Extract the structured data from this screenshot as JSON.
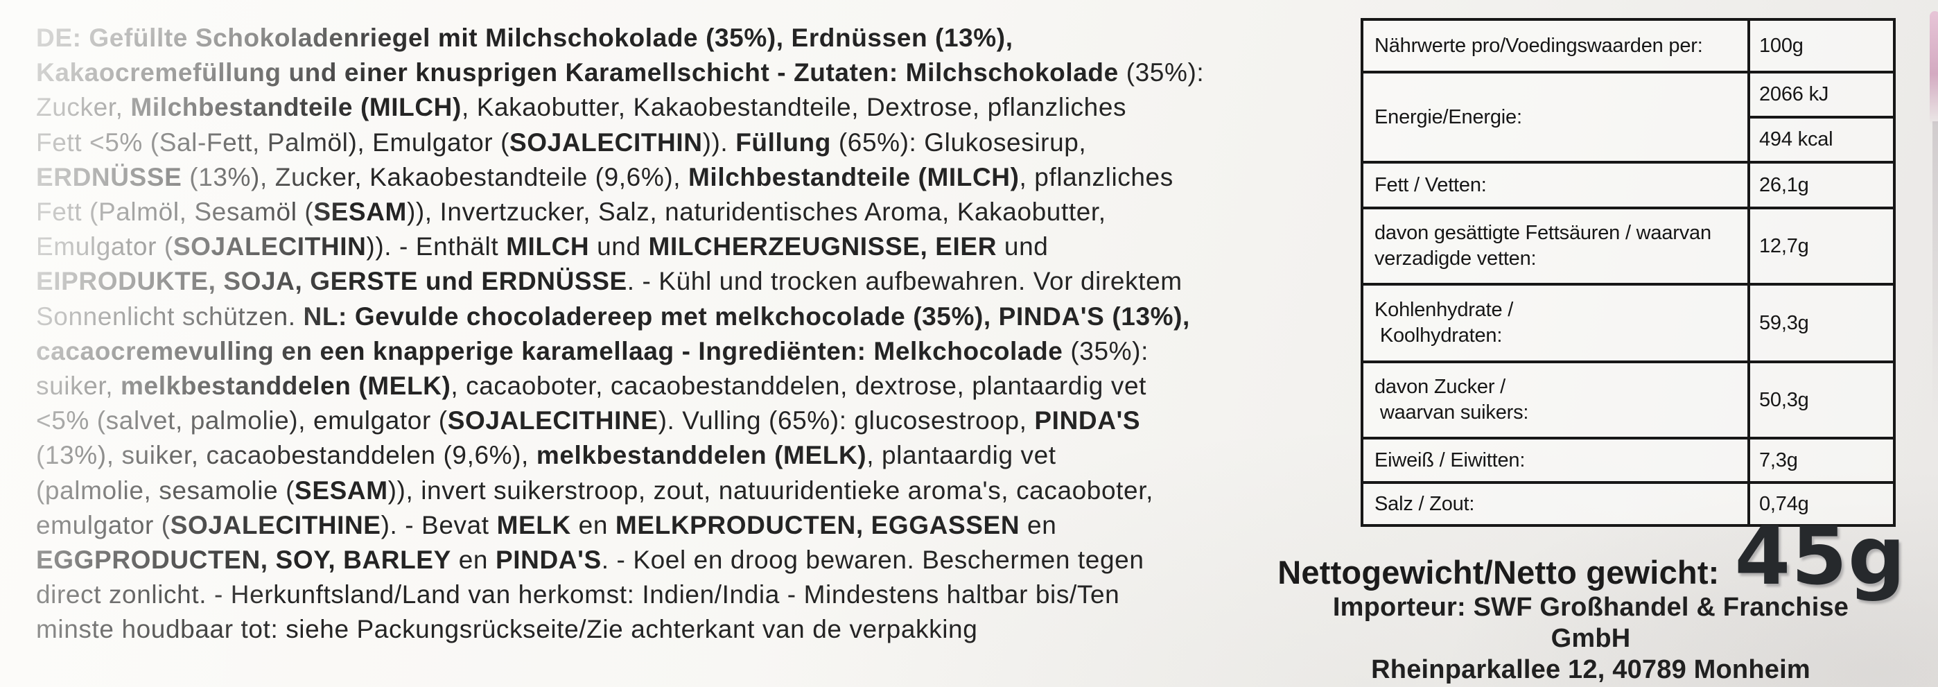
{
  "colors": {
    "text": "#1e1e1e",
    "table_border": "#171717",
    "background": "#f5f4f1",
    "edge_artifact_pink": "#d9aec6"
  },
  "ingredients": {
    "lines": [
      [
        [
          "b",
          "DE: Gefüllte Schokoladenriegel mit Milchschokolade (35%), Erdnüssen (13%),"
        ]
      ],
      [
        [
          "b",
          "Kakaocremefüllung und einer knusprigen Karamellschicht - Zutaten: Milchschokolade "
        ],
        [
          "r",
          "(35%):"
        ]
      ],
      [
        [
          "r",
          "Zucker, "
        ],
        [
          "b",
          "Milchbestandteile (MILCH)"
        ],
        [
          "r",
          ", Kakaobutter, Kakaobestandteile, Dextrose, pflanzliches"
        ]
      ],
      [
        [
          "r",
          "Fett <5% (Sal-Fett, Palmöl), Emulgator ("
        ],
        [
          "b",
          "SOJALECITHIN"
        ],
        [
          "r",
          ")). "
        ],
        [
          "b",
          "Füllung "
        ],
        [
          "r",
          "(65%): Glukosesirup,"
        ]
      ],
      [
        [
          "b",
          "ERDNÜSSE "
        ],
        [
          "r",
          "(13%), Zucker, Kakaobestandteile (9,6%), "
        ],
        [
          "b",
          "Milchbestandteile (MILCH)"
        ],
        [
          "r",
          ", pflanzliches"
        ]
      ],
      [
        [
          "r",
          "Fett (Palmöl, Sesamöl ("
        ],
        [
          "b",
          "SESAM"
        ],
        [
          "r",
          ")), Invertzucker, Salz, naturidentisches Aroma, Kakaobutter,"
        ]
      ],
      [
        [
          "r",
          "Emulgator ("
        ],
        [
          "b",
          "SOJALECITHIN"
        ],
        [
          "r",
          ")). - Enthält "
        ],
        [
          "b",
          "MILCH"
        ],
        [
          "r",
          " und "
        ],
        [
          "b",
          "MILCHERZEUGNISSE, EIER"
        ],
        [
          "r",
          " und"
        ]
      ],
      [
        [
          "b",
          "EIPRODUKTE, SOJA, GERSTE und ERDNÜSSE"
        ],
        [
          "r",
          ". - Kühl und trocken aufbewahren. Vor direktem"
        ]
      ],
      [
        [
          "r",
          "Sonnenlicht schützen. "
        ],
        [
          "b",
          "NL: Gevulde chocoladereep met melkchocolade (35%), PINDA'S (13%),"
        ]
      ],
      [
        [
          "b",
          "cacaocremevulling en een knapperige karamellaag - Ingrediënten: Melkchocolade "
        ],
        [
          "r",
          "(35%):"
        ]
      ],
      [
        [
          "r",
          "suiker, "
        ],
        [
          "b",
          "melkbestanddelen (MELK)"
        ],
        [
          "r",
          ", cacaoboter, cacaobestanddelen, dextrose, plantaardig vet"
        ]
      ],
      [
        [
          "r",
          "<5% (salvet, palmolie), emulgator ("
        ],
        [
          "b",
          "SOJALECITHINE"
        ],
        [
          "r",
          "). Vulling (65%): glucosestroop, "
        ],
        [
          "b",
          "PINDA'S"
        ]
      ],
      [
        [
          "r",
          "(13%), suiker, cacaobestanddelen (9,6%), "
        ],
        [
          "b",
          "melkbestanddelen (MELK)"
        ],
        [
          "r",
          ", plantaardig vet"
        ]
      ],
      [
        [
          "r",
          "(palmolie, sesamolie ("
        ],
        [
          "b",
          "SESAM"
        ],
        [
          "r",
          ")), invert suikerstroop, zout, natuuridentieke aroma's, cacaoboter,"
        ]
      ],
      [
        [
          "r",
          "emulgator ("
        ],
        [
          "b",
          "SOJALECITHINE"
        ],
        [
          "r",
          "). - Bevat "
        ],
        [
          "b",
          "MELK"
        ],
        [
          "r",
          " en "
        ],
        [
          "b",
          "MELKPRODUCTEN, EGGASSEN"
        ],
        [
          "r",
          " en"
        ]
      ],
      [
        [
          "b",
          "EGGPRODUCTEN, SOY, BARLEY"
        ],
        [
          "r",
          " en "
        ],
        [
          "b",
          "PINDA'S"
        ],
        [
          "r",
          ". - Koel en droog bewaren. Beschermen tegen"
        ]
      ],
      [
        [
          "r",
          "direct zonlicht. - Herkunftsland/Land van herkomst: Indien/India - Mindestens haltbar bis/Ten"
        ]
      ],
      [
        [
          "r",
          "minste houdbaar tot: siehe Packungsrückseite/Zie achterkant van de verpakking"
        ]
      ]
    ]
  },
  "nutrition": {
    "rows": [
      {
        "label": [
          "Nährwerte pro/Voedingswaarden per:"
        ],
        "values": [
          "100g"
        ]
      },
      {
        "label": [
          "Energie/Energie:"
        ],
        "values": [
          "2066 kJ",
          "494 kcal"
        ]
      },
      {
        "label": [
          "Fett / Vetten:"
        ],
        "values": [
          "26,1g"
        ]
      },
      {
        "label": [
          "davon gesättigte Fettsäuren / waarvan",
          "verzadigde vetten:"
        ],
        "values": [
          "12,7g"
        ]
      },
      {
        "label": [
          "Kohlenhydrate /",
          " Koolhydraten:"
        ],
        "values": [
          "59,3g"
        ]
      },
      {
        "label": [
          "davon Zucker /",
          " waarvan suikers:"
        ],
        "values": [
          "50,3g"
        ]
      },
      {
        "label": [
          "Eiweiß / Eiwitten:"
        ],
        "values": [
          "7,3g"
        ]
      },
      {
        "label": [
          "Salz / Zout:"
        ],
        "values": [
          "0,74g"
        ]
      }
    ]
  },
  "net_weight": {
    "label": "Nettogewicht/Netto gewicht:",
    "value": "45g"
  },
  "importer": {
    "line1": "Importeur: SWF Großhandel & Franchise",
    "line2": "GmbH",
    "line3": "Rheinparkallee 12, 40789 Monheim"
  }
}
